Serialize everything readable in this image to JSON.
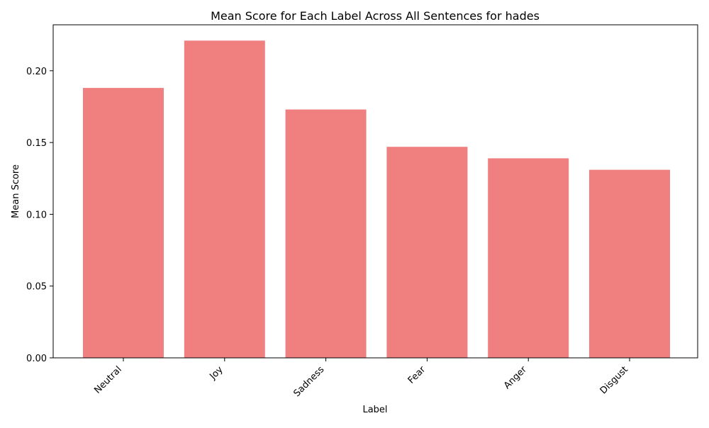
{
  "chart_data": {
    "type": "bar",
    "title": "Mean Score for Each Label Across All Sentences for hades",
    "xlabel": "Label",
    "ylabel": "Mean Score",
    "categories": [
      "Neutral",
      "Joy",
      "Sadness",
      "Fear",
      "Anger",
      "Disgust"
    ],
    "values": [
      0.188,
      0.221,
      0.173,
      0.147,
      0.139,
      0.131
    ],
    "ylim": [
      0,
      0.232
    ],
    "yticks": [
      0.0,
      0.05,
      0.1,
      0.15,
      0.2
    ],
    "ytick_labels": [
      "0.00",
      "0.05",
      "0.10",
      "0.15",
      "0.20"
    ],
    "bar_color": "#f08080",
    "grid": false,
    "legend": "none"
  }
}
